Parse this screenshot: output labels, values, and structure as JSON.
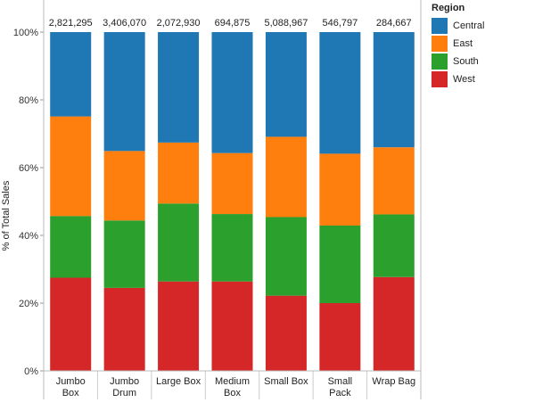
{
  "chart_data": {
    "type": "bar",
    "stacked": true,
    "normalized": true,
    "categories": [
      "Jumbo\nBox",
      "Jumbo\nDrum",
      "Large Box",
      "Medium\nBox",
      "Small Box",
      "Small\nPack",
      "Wrap Bag"
    ],
    "totals": [
      "2,821,295",
      "3,406,070",
      "2,072,930",
      "694,875",
      "5,088,967",
      "546,797",
      "284,667"
    ],
    "series": [
      {
        "name": "West",
        "color": "#d62728",
        "values": [
          27.5,
          24.5,
          26.4,
          26.4,
          22.2,
          20.0,
          27.7
        ]
      },
      {
        "name": "South",
        "color": "#2ca02c",
        "values": [
          18.2,
          19.9,
          23.0,
          19.9,
          23.2,
          22.9,
          18.5
        ]
      },
      {
        "name": "East",
        "color": "#ff7f0e",
        "values": [
          29.4,
          20.5,
          18.0,
          18.0,
          23.7,
          21.2,
          19.8
        ]
      },
      {
        "name": "Central",
        "color": "#1f77b4",
        "values": [
          24.9,
          35.1,
          32.6,
          35.7,
          30.9,
          35.9,
          34.0
        ]
      }
    ],
    "ylabel": "% of Total Sales",
    "ylim": [
      0,
      100
    ],
    "yticks": [
      "0%",
      "20%",
      "40%",
      "60%",
      "80%",
      "100%"
    ],
    "legend": {
      "title": "Region",
      "placement": "right",
      "entries": [
        {
          "name": "Central",
          "color": "#1f77b4"
        },
        {
          "name": "East",
          "color": "#ff7f0e"
        },
        {
          "name": "South",
          "color": "#2ca02c"
        },
        {
          "name": "West",
          "color": "#d62728"
        }
      ]
    },
    "grid": false
  }
}
